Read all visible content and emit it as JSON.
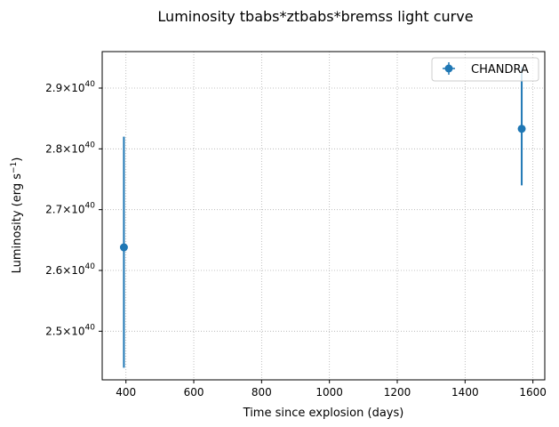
{
  "chart_data": {
    "type": "scatter",
    "title": "Luminosity tbabs*ztbabs*bremss light curve",
    "xlabel": "Time since explosion (days)",
    "ylabel_main": "Luminosity (erg s",
    "ylabel_exp": "−1",
    "ylabel_end": ")",
    "xlim": [
      330,
      1635
    ],
    "ylim": [
      2.42e+40,
      2.96e+40
    ],
    "x_ticks": [
      400,
      600,
      800,
      1000,
      1200,
      1400,
      1600
    ],
    "x_tick_labels": [
      "400",
      "600",
      "800",
      "1000",
      "1200",
      "1400",
      "1600"
    ],
    "y_ticks": [
      2.5e+40,
      2.6e+40,
      2.7e+40,
      2.8e+40,
      2.9e+40
    ],
    "y_tick_labels": [
      {
        "mantissa": "2.5",
        "base": "10",
        "exp": "40"
      },
      {
        "mantissa": "2.6",
        "base": "10",
        "exp": "40"
      },
      {
        "mantissa": "2.7",
        "base": "10",
        "exp": "40"
      },
      {
        "mantissa": "2.8",
        "base": "10",
        "exp": "40"
      },
      {
        "mantissa": "2.9",
        "base": "10",
        "exp": "40"
      }
    ],
    "y_tick_times": "×",
    "grid": true,
    "legend_position": "top-right",
    "series": [
      {
        "name": "CHANDRA",
        "color": "#1f77b4",
        "points": [
          {
            "x": 394,
            "y": 2.638e+40,
            "ylow": 2.44e+40,
            "yhigh": 2.82e+40
          },
          {
            "x": 1567,
            "y": 2.833e+40,
            "ylow": 2.74e+40,
            "yhigh": 2.935e+40
          }
        ]
      }
    ]
  }
}
